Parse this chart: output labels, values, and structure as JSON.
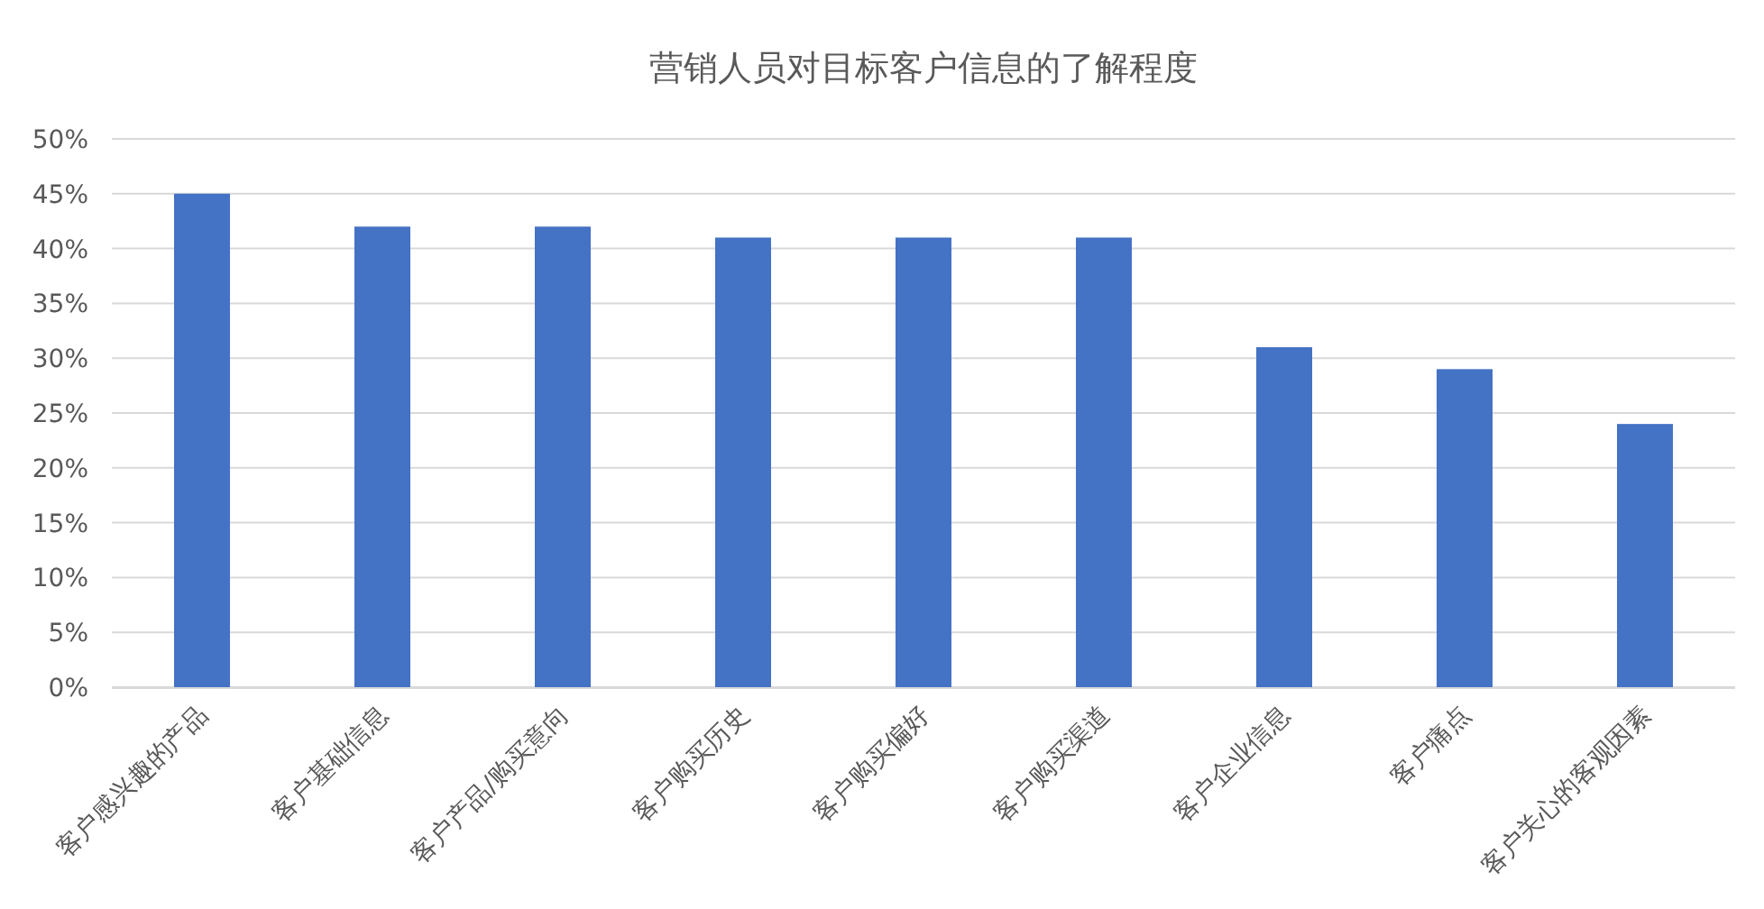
{
  "chart_data": {
    "type": "bar",
    "title": "营销人员对目标客户信息的了解程度",
    "categories": [
      "客户感兴趣的产品",
      "客户基础信息",
      "客户产品/购买意向",
      "客户购买历史",
      "客户购买偏好",
      "客户购买渠道",
      "客户企业信息",
      "客户痛点",
      "客户关心的客观因素"
    ],
    "values": [
      45,
      42,
      42,
      41,
      41,
      41,
      31,
      29,
      24
    ],
    "color": "#4472c4",
    "ylim": [
      0,
      50
    ],
    "yticks": [
      {
        "value": 0,
        "label": "0%"
      },
      {
        "value": 5,
        "label": "5%"
      },
      {
        "value": 10,
        "label": "10%"
      },
      {
        "value": 15,
        "label": "15%"
      },
      {
        "value": 20,
        "label": "20%"
      },
      {
        "value": 25,
        "label": "25%"
      },
      {
        "value": 30,
        "label": "30%"
      },
      {
        "value": 35,
        "label": "35%"
      },
      {
        "value": 40,
        "label": "40%"
      },
      {
        "value": 45,
        "label": "45%"
      },
      {
        "value": 50,
        "label": "50%"
      }
    ],
    "grid": "y"
  }
}
